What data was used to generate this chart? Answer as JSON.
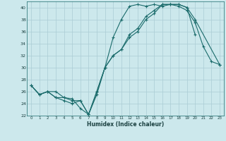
{
  "xlabel": "Humidex (Indice chaleur)",
  "bg_color": "#cce8ec",
  "grid_color": "#aaccd4",
  "line_color": "#1a6b6b",
  "xlim": [
    -0.5,
    23.5
  ],
  "ylim": [
    22,
    41
  ],
  "xticks": [
    0,
    1,
    2,
    3,
    4,
    5,
    6,
    7,
    8,
    9,
    10,
    11,
    12,
    13,
    14,
    15,
    16,
    17,
    18,
    19,
    20,
    21,
    22,
    23
  ],
  "yticks": [
    22,
    24,
    26,
    28,
    30,
    32,
    34,
    36,
    38,
    40
  ],
  "line1_x": [
    0,
    1,
    2,
    3,
    4,
    5,
    6,
    7,
    8,
    9,
    10,
    11,
    12,
    13,
    14,
    15,
    16,
    17,
    18,
    19,
    20,
    23
  ],
  "line1_y": [
    27,
    25.5,
    26,
    25,
    24.5,
    24,
    24.5,
    22.2,
    26,
    30,
    32,
    33,
    35,
    36,
    38,
    39,
    40.5,
    40.5,
    40.5,
    40,
    38,
    30.5
  ],
  "line2_x": [
    0,
    1,
    2,
    3,
    4,
    5,
    6,
    7,
    8,
    9,
    10,
    11,
    12,
    13,
    14,
    15,
    16,
    17,
    18,
    19,
    20,
    21,
    22,
    23
  ],
  "line2_y": [
    27,
    25.5,
    26,
    25,
    25,
    24.8,
    23.2,
    22.2,
    25.5,
    30,
    35,
    38,
    40.2,
    40.5,
    40.2,
    40.5,
    40.2,
    40.5,
    40.2,
    39.5,
    37.5,
    33.5,
    31,
    30.5
  ],
  "line3_x": [
    0,
    1,
    2,
    3,
    4,
    5,
    6,
    7,
    8,
    9,
    10,
    11,
    12,
    13,
    14,
    15,
    16,
    17,
    18,
    19,
    20
  ],
  "line3_y": [
    27,
    25.5,
    26,
    26,
    25,
    24.5,
    24.5,
    22.2,
    26,
    30,
    32,
    33,
    35.5,
    36.5,
    38.5,
    39.5,
    40.5,
    40.5,
    40.5,
    40,
    35.5
  ]
}
